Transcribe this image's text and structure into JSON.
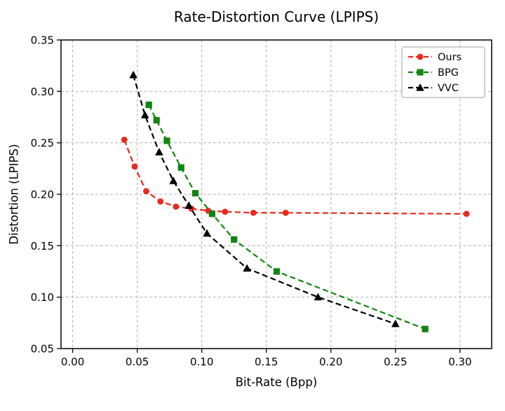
{
  "figure": {
    "background": "#ffffff",
    "grid_color": "#b3b3b3",
    "frame_color": "#000000",
    "legend_border_color": "#b0b0b0"
  },
  "chart_data": {
    "type": "line",
    "title": "Rate-Distortion Curve (LPIPS)",
    "xlabel": "Bit-Rate (Bpp)",
    "ylabel": "Distortion (LPIPS)",
    "xlim": [
      -0.009,
      0.3245
    ],
    "ylim": [
      0.05,
      0.35
    ],
    "xticks": [
      0.0,
      0.05,
      0.1,
      0.15,
      0.2,
      0.25,
      0.3
    ],
    "yticks": [
      0.05,
      0.1,
      0.15,
      0.2,
      0.25,
      0.3,
      0.35
    ],
    "xtick_labels": [
      "0.00",
      "0.05",
      "0.10",
      "0.15",
      "0.20",
      "0.25",
      "0.30"
    ],
    "ytick_labels": [
      "0.05",
      "0.10",
      "0.15",
      "0.20",
      "0.25",
      "0.30",
      "0.35"
    ],
    "grid": true,
    "grid_style": "dashed",
    "legend_position": "upper right",
    "series": [
      {
        "name": "Ours",
        "color": "#e8291c",
        "marker": "circle",
        "linestyle": "dashed",
        "x": [
          0.04,
          0.048,
          0.057,
          0.068,
          0.08,
          0.092,
          0.105,
          0.118,
          0.14,
          0.165,
          0.305
        ],
        "y": [
          0.253,
          0.227,
          0.203,
          0.193,
          0.188,
          0.186,
          0.184,
          0.183,
          0.182,
          0.182,
          0.181
        ]
      },
      {
        "name": "BPG",
        "color": "#128412",
        "marker": "square",
        "linestyle": "dashed",
        "x": [
          0.059,
          0.065,
          0.073,
          0.084,
          0.095,
          0.108,
          0.125,
          0.158,
          0.273
        ],
        "y": [
          0.287,
          0.272,
          0.252,
          0.226,
          0.201,
          0.181,
          0.156,
          0.125,
          0.069
        ]
      },
      {
        "name": "VVC",
        "color": "#000000",
        "marker": "triangle",
        "linestyle": "dashed",
        "x": [
          0.047,
          0.056,
          0.067,
          0.078,
          0.09,
          0.104,
          0.135,
          0.19,
          0.25
        ],
        "y": [
          0.316,
          0.277,
          0.241,
          0.213,
          0.189,
          0.162,
          0.128,
          0.1,
          0.074
        ]
      }
    ]
  }
}
